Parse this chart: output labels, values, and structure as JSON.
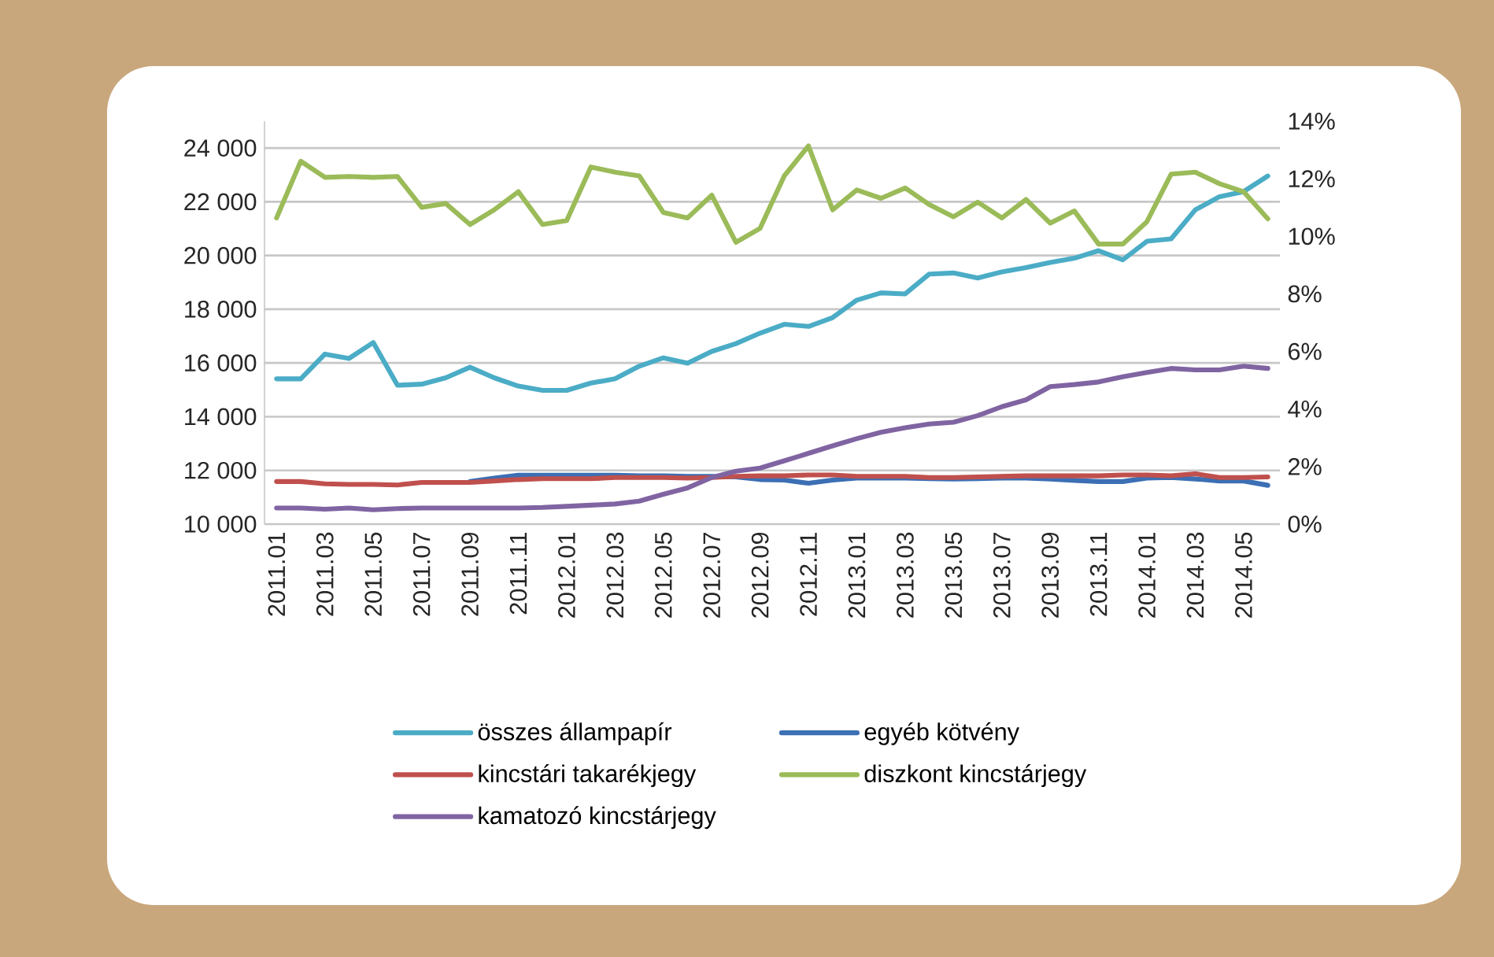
{
  "chart_data": {
    "type": "line",
    "categories": [
      "2011.01",
      null,
      "2011.03",
      null,
      "2011.05",
      null,
      "2011.07",
      null,
      "2011.09",
      null,
      "2011.11",
      null,
      "2012.01",
      null,
      "2012.03",
      null,
      "2012.05",
      null,
      "2012.07",
      null,
      "2012.09",
      null,
      "2012.11",
      null,
      "2013.01",
      null,
      "2013.03",
      null,
      "2013.05",
      null,
      "2013.07",
      null,
      "2013.09",
      null,
      "2013.11",
      null,
      "2014.01",
      null,
      "2014.03",
      null,
      "2014.05",
      null
    ],
    "series": [
      {
        "name": "összes állampapír",
        "color": "#4bacc6",
        "values": [
          15410,
          15410,
          16330,
          16170,
          16760,
          15170,
          15210,
          15450,
          15840,
          15450,
          15140,
          14980,
          14980,
          15250,
          15410,
          15880,
          16190,
          15990,
          16430,
          16720,
          17110,
          17440,
          17360,
          17690,
          18340,
          18610,
          18570,
          19310,
          19350,
          19160,
          19390,
          19550,
          19740,
          19900,
          20180,
          19840,
          20530,
          20620,
          21700,
          22190,
          22380,
          22960
        ]
      },
      {
        "name": "egyéb kötvény",
        "color": "#3c6fb4",
        "axis": "y2",
        "values": [
          null,
          null,
          null,
          null,
          null,
          null,
          null,
          null,
          1.48,
          1.6,
          1.7,
          1.7,
          1.7,
          1.7,
          1.7,
          1.68,
          1.68,
          1.66,
          1.66,
          1.64,
          1.55,
          1.53,
          1.42,
          1.53,
          1.6,
          1.6,
          1.6,
          1.58,
          1.57,
          1.58,
          1.6,
          1.6,
          1.57,
          1.52,
          1.48,
          1.48,
          1.6,
          1.62,
          1.57,
          1.5,
          1.5,
          1.35
        ]
      },
      {
        "name": "kincstári takarékjegy",
        "color": "#c0504d",
        "axis": "y2",
        "values": [
          1.48,
          1.48,
          1.4,
          1.38,
          1.38,
          1.36,
          1.45,
          1.45,
          1.45,
          1.5,
          1.55,
          1.58,
          1.58,
          1.58,
          1.62,
          1.62,
          1.62,
          1.6,
          1.62,
          1.66,
          1.68,
          1.68,
          1.71,
          1.71,
          1.66,
          1.66,
          1.66,
          1.62,
          1.62,
          1.64,
          1.66,
          1.68,
          1.68,
          1.68,
          1.68,
          1.71,
          1.71,
          1.68,
          1.75,
          1.62,
          1.62,
          1.64
        ]
      },
      {
        "name": "diszkont kincstárjegy",
        "color": "#9bbb59",
        "axis": "y2",
        "values": [
          10.64,
          12.61,
          12.05,
          12.08,
          12.05,
          12.08,
          11.01,
          11.14,
          10.41,
          10.92,
          11.55,
          10.41,
          10.55,
          12.41,
          12.23,
          12.1,
          10.83,
          10.64,
          11.43,
          9.79,
          10.28,
          12.1,
          13.14,
          10.92,
          11.61,
          11.32,
          11.68,
          11.1,
          10.68,
          11.19,
          10.64,
          11.28,
          10.46,
          10.88,
          9.73,
          9.73,
          10.51,
          12.16,
          12.23,
          11.83,
          11.55,
          10.61
        ]
      },
      {
        "name": "kamatozó kincstárjegy",
        "color": "#8064a2",
        "axis": "y2",
        "values": [
          0.56,
          0.56,
          0.52,
          0.56,
          0.5,
          0.54,
          0.56,
          0.56,
          0.56,
          0.56,
          0.56,
          0.58,
          0.62,
          0.66,
          0.7,
          0.8,
          1.04,
          1.26,
          1.62,
          1.84,
          1.95,
          2.2,
          2.46,
          2.72,
          2.97,
          3.19,
          3.35,
          3.48,
          3.54,
          3.77,
          4.08,
          4.32,
          4.78,
          4.85,
          4.94,
          5.12,
          5.27,
          5.41,
          5.36,
          5.36,
          5.49,
          5.41
        ]
      }
    ],
    "ylim": [
      10000,
      25000
    ],
    "yticks": [
      {
        "value": 10000,
        "label": "10 000"
      },
      {
        "value": 12000,
        "label": "12 000"
      },
      {
        "value": 14000,
        "label": "14 000"
      },
      {
        "value": 16000,
        "label": "16 000"
      },
      {
        "value": 18000,
        "label": "18 000"
      },
      {
        "value": 20000,
        "label": "20 000"
      },
      {
        "value": 22000,
        "label": "22 000"
      },
      {
        "value": 24000,
        "label": "24 000"
      }
    ],
    "y2lim": [
      0,
      14
    ],
    "y2ticks": [
      {
        "value": 0,
        "label": "0%"
      },
      {
        "value": 2,
        "label": "2%"
      },
      {
        "value": 4,
        "label": "4%"
      },
      {
        "value": 6,
        "label": "6%"
      },
      {
        "value": 8,
        "label": "8%"
      },
      {
        "value": 10,
        "label": "10%"
      },
      {
        "value": 12,
        "label": "12%"
      },
      {
        "value": 14,
        "label": "14%"
      }
    ],
    "grid": "y",
    "legend": "bottom",
    "marker": "none",
    "line_style": "solid"
  }
}
